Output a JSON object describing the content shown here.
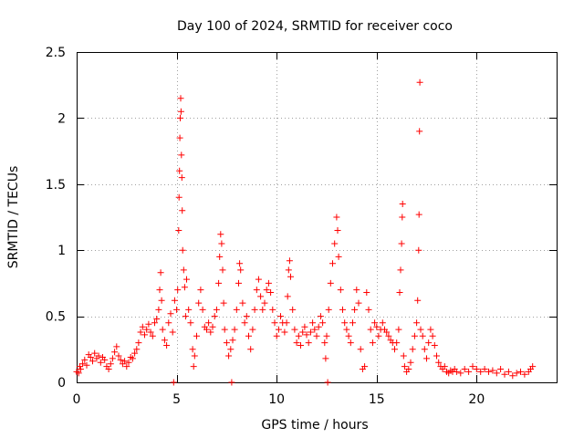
{
  "chart_data": {
    "type": "scatter",
    "title": "Day 100 of 2024, SRMTID for receiver coco",
    "xlabel": "GPS time / hours",
    "ylabel": "SRMTID / TECUs",
    "xlim": [
      0,
      24
    ],
    "ylim": [
      0,
      2.5
    ],
    "x_ticks": [
      0,
      5,
      10,
      15,
      20
    ],
    "x_tick_labels": [
      "0",
      "5",
      "10",
      "15",
      "20"
    ],
    "y_ticks": [
      0,
      0.5,
      1,
      1.5,
      2,
      2.5
    ],
    "y_tick_labels": [
      "0",
      "0.5",
      "1",
      "1.5",
      "2",
      "2.5"
    ],
    "grid": true,
    "marker": "plus",
    "color": "#ff0000",
    "series": [
      {
        "name": "SRMTID",
        "points": [
          [
            0.0,
            0.08
          ],
          [
            0.1,
            0.07
          ],
          [
            0.15,
            0.12
          ],
          [
            0.2,
            0.1
          ],
          [
            0.3,
            0.14
          ],
          [
            0.4,
            0.17
          ],
          [
            0.5,
            0.13
          ],
          [
            0.6,
            0.21
          ],
          [
            0.7,
            0.19
          ],
          [
            0.8,
            0.16
          ],
          [
            0.9,
            0.22
          ],
          [
            1.0,
            0.18
          ],
          [
            1.1,
            0.2
          ],
          [
            1.2,
            0.15
          ],
          [
            1.3,
            0.19
          ],
          [
            1.4,
            0.17
          ],
          [
            1.5,
            0.12
          ],
          [
            1.6,
            0.1
          ],
          [
            1.7,
            0.14
          ],
          [
            1.8,
            0.18
          ],
          [
            1.9,
            0.23
          ],
          [
            2.0,
            0.27
          ],
          [
            2.1,
            0.2
          ],
          [
            2.2,
            0.17
          ],
          [
            2.3,
            0.14
          ],
          [
            2.4,
            0.16
          ],
          [
            2.5,
            0.12
          ],
          [
            2.6,
            0.15
          ],
          [
            2.7,
            0.19
          ],
          [
            2.8,
            0.18
          ],
          [
            2.9,
            0.22
          ],
          [
            3.0,
            0.25
          ],
          [
            3.1,
            0.3
          ],
          [
            3.2,
            0.38
          ],
          [
            3.3,
            0.42
          ],
          [
            3.4,
            0.36
          ],
          [
            3.5,
            0.4
          ],
          [
            3.6,
            0.44
          ],
          [
            3.7,
            0.38
          ],
          [
            3.8,
            0.35
          ],
          [
            3.9,
            0.45
          ],
          [
            4.0,
            0.48
          ],
          [
            4.1,
            0.55
          ],
          [
            4.15,
            0.7
          ],
          [
            4.2,
            0.83
          ],
          [
            4.25,
            0.62
          ],
          [
            4.3,
            0.4
          ],
          [
            4.4,
            0.32
          ],
          [
            4.5,
            0.28
          ],
          [
            4.6,
            0.45
          ],
          [
            4.7,
            0.52
          ],
          [
            4.8,
            0.38
          ],
          [
            4.85,
            0.0
          ],
          [
            4.9,
            0.62
          ],
          [
            5.0,
            0.55
          ],
          [
            5.05,
            0.7
          ],
          [
            5.1,
            1.15
          ],
          [
            5.12,
            1.4
          ],
          [
            5.14,
            1.6
          ],
          [
            5.16,
            1.85
          ],
          [
            5.18,
            2.0
          ],
          [
            5.2,
            2.15
          ],
          [
            5.22,
            2.05
          ],
          [
            5.24,
            1.72
          ],
          [
            5.26,
            1.55
          ],
          [
            5.28,
            1.3
          ],
          [
            5.3,
            1.0
          ],
          [
            5.35,
            0.85
          ],
          [
            5.4,
            0.72
          ],
          [
            5.45,
            0.5
          ],
          [
            5.5,
            0.78
          ],
          [
            5.6,
            0.55
          ],
          [
            5.7,
            0.45
          ],
          [
            5.8,
            0.25
          ],
          [
            5.85,
            0.12
          ],
          [
            5.9,
            0.2
          ],
          [
            6.0,
            0.35
          ],
          [
            6.1,
            0.6
          ],
          [
            6.2,
            0.7
          ],
          [
            6.3,
            0.55
          ],
          [
            6.4,
            0.42
          ],
          [
            6.5,
            0.4
          ],
          [
            6.6,
            0.45
          ],
          [
            6.7,
            0.38
          ],
          [
            6.8,
            0.42
          ],
          [
            6.9,
            0.5
          ],
          [
            7.0,
            0.55
          ],
          [
            7.1,
            0.75
          ],
          [
            7.15,
            0.95
          ],
          [
            7.2,
            1.12
          ],
          [
            7.25,
            1.05
          ],
          [
            7.3,
            0.85
          ],
          [
            7.35,
            0.6
          ],
          [
            7.4,
            0.4
          ],
          [
            7.5,
            0.3
          ],
          [
            7.6,
            0.2
          ],
          [
            7.7,
            0.25
          ],
          [
            7.75,
            0.0
          ],
          [
            7.8,
            0.32
          ],
          [
            7.9,
            0.4
          ],
          [
            8.0,
            0.55
          ],
          [
            8.1,
            0.75
          ],
          [
            8.15,
            0.9
          ],
          [
            8.2,
            0.85
          ],
          [
            8.3,
            0.6
          ],
          [
            8.4,
            0.45
          ],
          [
            8.5,
            0.5
          ],
          [
            8.6,
            0.35
          ],
          [
            8.7,
            0.25
          ],
          [
            8.8,
            0.4
          ],
          [
            8.9,
            0.55
          ],
          [
            9.0,
            0.7
          ],
          [
            9.1,
            0.78
          ],
          [
            9.2,
            0.65
          ],
          [
            9.3,
            0.55
          ],
          [
            9.4,
            0.6
          ],
          [
            9.5,
            0.7
          ],
          [
            9.6,
            0.75
          ],
          [
            9.7,
            0.68
          ],
          [
            9.8,
            0.55
          ],
          [
            9.9,
            0.45
          ],
          [
            10.0,
            0.35
          ],
          [
            10.1,
            0.4
          ],
          [
            10.2,
            0.5
          ],
          [
            10.3,
            0.45
          ],
          [
            10.4,
            0.38
          ],
          [
            10.5,
            0.45
          ],
          [
            10.55,
            0.65
          ],
          [
            10.6,
            0.85
          ],
          [
            10.65,
            0.92
          ],
          [
            10.7,
            0.8
          ],
          [
            10.8,
            0.55
          ],
          [
            10.9,
            0.4
          ],
          [
            11.0,
            0.3
          ],
          [
            11.1,
            0.35
          ],
          [
            11.2,
            0.28
          ],
          [
            11.3,
            0.38
          ],
          [
            11.4,
            0.42
          ],
          [
            11.5,
            0.36
          ],
          [
            11.6,
            0.3
          ],
          [
            11.7,
            0.38
          ],
          [
            11.8,
            0.45
          ],
          [
            11.9,
            0.4
          ],
          [
            12.0,
            0.35
          ],
          [
            12.1,
            0.42
          ],
          [
            12.2,
            0.5
          ],
          [
            12.3,
            0.45
          ],
          [
            12.4,
            0.3
          ],
          [
            12.45,
            0.18
          ],
          [
            12.5,
            0.35
          ],
          [
            12.55,
            0.0
          ],
          [
            12.6,
            0.55
          ],
          [
            12.7,
            0.75
          ],
          [
            12.8,
            0.9
          ],
          [
            12.9,
            1.05
          ],
          [
            13.0,
            1.25
          ],
          [
            13.05,
            1.15
          ],
          [
            13.1,
            0.95
          ],
          [
            13.2,
            0.7
          ],
          [
            13.3,
            0.55
          ],
          [
            13.4,
            0.45
          ],
          [
            13.5,
            0.4
          ],
          [
            13.6,
            0.35
          ],
          [
            13.7,
            0.3
          ],
          [
            13.8,
            0.45
          ],
          [
            13.9,
            0.55
          ],
          [
            14.0,
            0.7
          ],
          [
            14.1,
            0.6
          ],
          [
            14.2,
            0.25
          ],
          [
            14.3,
            0.1
          ],
          [
            14.4,
            0.12
          ],
          [
            14.5,
            0.68
          ],
          [
            14.6,
            0.55
          ],
          [
            14.7,
            0.4
          ],
          [
            14.8,
            0.3
          ],
          [
            14.9,
            0.45
          ],
          [
            15.0,
            0.42
          ],
          [
            15.1,
            0.35
          ],
          [
            15.2,
            0.4
          ],
          [
            15.3,
            0.45
          ],
          [
            15.4,
            0.4
          ],
          [
            15.5,
            0.38
          ],
          [
            15.6,
            0.35
          ],
          [
            15.7,
            0.32
          ],
          [
            15.8,
            0.3
          ],
          [
            15.9,
            0.25
          ],
          [
            16.0,
            0.3
          ],
          [
            16.1,
            0.4
          ],
          [
            16.15,
            0.68
          ],
          [
            16.2,
            0.85
          ],
          [
            16.25,
            1.05
          ],
          [
            16.28,
            1.25
          ],
          [
            16.3,
            1.35
          ],
          [
            16.35,
            0.2
          ],
          [
            16.4,
            0.12
          ],
          [
            16.5,
            0.08
          ],
          [
            16.6,
            0.1
          ],
          [
            16.7,
            0.15
          ],
          [
            16.8,
            0.25
          ],
          [
            16.9,
            0.35
          ],
          [
            17.0,
            0.45
          ],
          [
            17.05,
            0.62
          ],
          [
            17.1,
            1.0
          ],
          [
            17.12,
            1.27
          ],
          [
            17.14,
            1.9
          ],
          [
            17.16,
            2.27
          ],
          [
            17.2,
            0.4
          ],
          [
            17.3,
            0.35
          ],
          [
            17.4,
            0.25
          ],
          [
            17.5,
            0.18
          ],
          [
            17.6,
            0.3
          ],
          [
            17.7,
            0.4
          ],
          [
            17.8,
            0.35
          ],
          [
            17.9,
            0.28
          ],
          [
            18.0,
            0.2
          ],
          [
            18.1,
            0.15
          ],
          [
            18.2,
            0.12
          ],
          [
            18.3,
            0.1
          ],
          [
            18.4,
            0.12
          ],
          [
            18.5,
            0.08
          ],
          [
            18.6,
            0.07
          ],
          [
            18.7,
            0.09
          ],
          [
            18.8,
            0.08
          ],
          [
            18.9,
            0.1
          ],
          [
            19.0,
            0.08
          ],
          [
            19.2,
            0.07
          ],
          [
            19.4,
            0.1
          ],
          [
            19.6,
            0.08
          ],
          [
            19.8,
            0.12
          ],
          [
            20.0,
            0.1
          ],
          [
            20.2,
            0.08
          ],
          [
            20.4,
            0.1
          ],
          [
            20.6,
            0.08
          ],
          [
            20.8,
            0.09
          ],
          [
            21.0,
            0.07
          ],
          [
            21.2,
            0.1
          ],
          [
            21.4,
            0.06
          ],
          [
            21.6,
            0.08
          ],
          [
            21.8,
            0.05
          ],
          [
            22.0,
            0.07
          ],
          [
            22.2,
            0.08
          ],
          [
            22.4,
            0.06
          ],
          [
            22.6,
            0.08
          ],
          [
            22.7,
            0.1
          ],
          [
            22.8,
            0.12
          ]
        ]
      }
    ]
  }
}
